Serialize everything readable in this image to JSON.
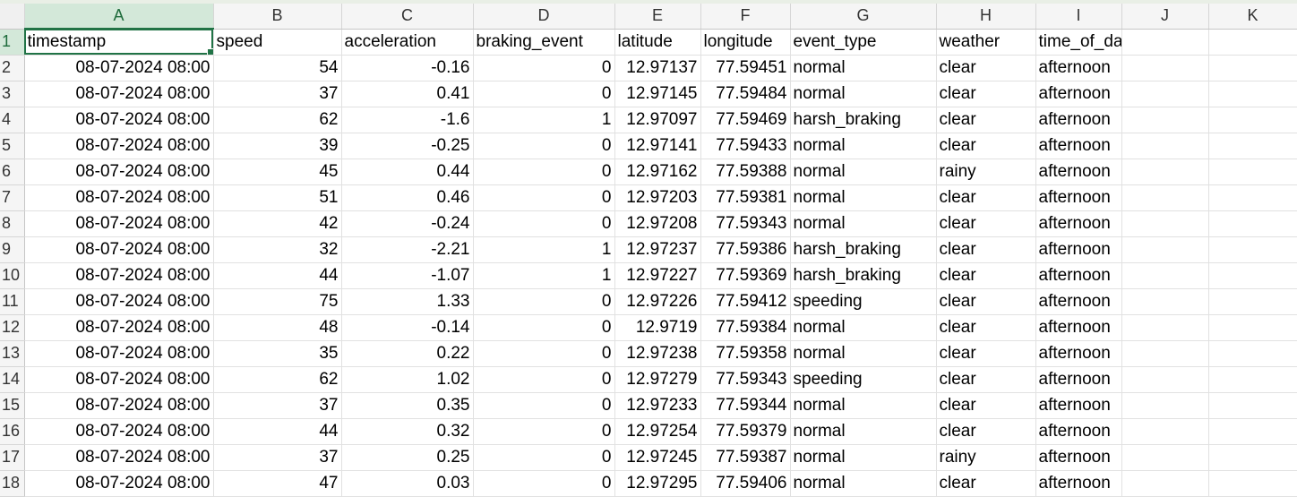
{
  "columns": [
    "A",
    "B",
    "C",
    "D",
    "E",
    "F",
    "G",
    "H",
    "I",
    "J",
    "K"
  ],
  "headers": [
    "timestamp",
    "speed",
    "acceleration",
    "braking_event",
    "latitude",
    "longitude",
    "event_type",
    "weather",
    "time_of_day",
    "",
    ""
  ],
  "row_numbers": [
    "1",
    "2",
    "3",
    "4",
    "5",
    "6",
    "7",
    "8",
    "9",
    "10",
    "11",
    "12",
    "13",
    "14",
    "15",
    "16",
    "17",
    "18"
  ],
  "rows": [
    [
      "08-07-2024 08:00",
      "54",
      "-0.16",
      "0",
      "12.97137",
      "77.59451",
      "normal",
      "clear",
      "afternoon",
      "",
      ""
    ],
    [
      "08-07-2024 08:00",
      "37",
      "0.41",
      "0",
      "12.97145",
      "77.59484",
      "normal",
      "clear",
      "afternoon",
      "",
      ""
    ],
    [
      "08-07-2024 08:00",
      "62",
      "-1.6",
      "1",
      "12.97097",
      "77.59469",
      "harsh_braking",
      "clear",
      "afternoon",
      "",
      ""
    ],
    [
      "08-07-2024 08:00",
      "39",
      "-0.25",
      "0",
      "12.97141",
      "77.59433",
      "normal",
      "clear",
      "afternoon",
      "",
      ""
    ],
    [
      "08-07-2024 08:00",
      "45",
      "0.44",
      "0",
      "12.97162",
      "77.59388",
      "normal",
      "rainy",
      "afternoon",
      "",
      ""
    ],
    [
      "08-07-2024 08:00",
      "51",
      "0.46",
      "0",
      "12.97203",
      "77.59381",
      "normal",
      "clear",
      "afternoon",
      "",
      ""
    ],
    [
      "08-07-2024 08:00",
      "42",
      "-0.24",
      "0",
      "12.97208",
      "77.59343",
      "normal",
      "clear",
      "afternoon",
      "",
      ""
    ],
    [
      "08-07-2024 08:00",
      "32",
      "-2.21",
      "1",
      "12.97237",
      "77.59386",
      "harsh_braking",
      "clear",
      "afternoon",
      "",
      ""
    ],
    [
      "08-07-2024 08:00",
      "44",
      "-1.07",
      "1",
      "12.97227",
      "77.59369",
      "harsh_braking",
      "clear",
      "afternoon",
      "",
      ""
    ],
    [
      "08-07-2024 08:00",
      "75",
      "1.33",
      "0",
      "12.97226",
      "77.59412",
      "speeding",
      "clear",
      "afternoon",
      "",
      ""
    ],
    [
      "08-07-2024 08:00",
      "48",
      "-0.14",
      "0",
      "12.9719",
      "77.59384",
      "normal",
      "clear",
      "afternoon",
      "",
      ""
    ],
    [
      "08-07-2024 08:00",
      "35",
      "0.22",
      "0",
      "12.97238",
      "77.59358",
      "normal",
      "clear",
      "afternoon",
      "",
      ""
    ],
    [
      "08-07-2024 08:00",
      "62",
      "1.02",
      "0",
      "12.97279",
      "77.59343",
      "speeding",
      "clear",
      "afternoon",
      "",
      ""
    ],
    [
      "08-07-2024 08:00",
      "37",
      "0.35",
      "0",
      "12.97233",
      "77.59344",
      "normal",
      "clear",
      "afternoon",
      "",
      ""
    ],
    [
      "08-07-2024 08:00",
      "44",
      "0.32",
      "0",
      "12.97254",
      "77.59379",
      "normal",
      "clear",
      "afternoon",
      "",
      ""
    ],
    [
      "08-07-2024 08:00",
      "37",
      "0.25",
      "0",
      "12.97245",
      "77.59387",
      "normal",
      "rainy",
      "afternoon",
      "",
      ""
    ],
    [
      "08-07-2024 08:00",
      "47",
      "0.03",
      "0",
      "12.97295",
      "77.59406",
      "normal",
      "clear",
      "afternoon",
      "",
      ""
    ]
  ],
  "selected_cell": "A1",
  "colors": {
    "accent": "#217346",
    "header_bg": "#f5f5f5",
    "active_header_bg": "#d3e8d9",
    "gridline": "#e1e1e1"
  }
}
